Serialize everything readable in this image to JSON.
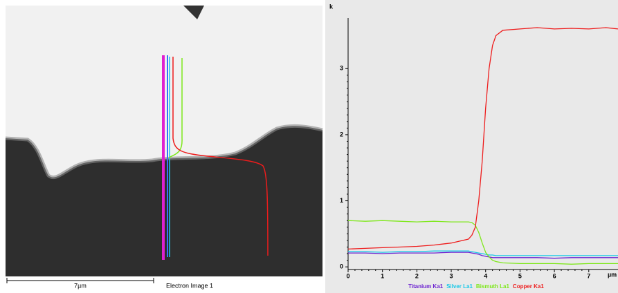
{
  "image": {
    "scale_bar": "7µm",
    "caption": "Electron Image 1"
  },
  "chart_data": {
    "type": "line",
    "y_label": "k",
    "x_label": "µm",
    "x": [
      0,
      0.5,
      1,
      1.5,
      2,
      2.5,
      3,
      3.5,
      3.6,
      3.7,
      3.8,
      3.9,
      4,
      4.1,
      4.2,
      4.3,
      4.5,
      5,
      5.5,
      6,
      6.5,
      7,
      7.5,
      7.85
    ],
    "series": [
      {
        "name": "Titanium Ka1",
        "color": "#6a1fd0",
        "values": [
          0.21,
          0.21,
          0.2,
          0.21,
          0.21,
          0.21,
          0.22,
          0.22,
          0.21,
          0.2,
          0.19,
          0.17,
          0.16,
          0.15,
          0.14,
          0.14,
          0.14,
          0.14,
          0.14,
          0.13,
          0.14,
          0.14,
          0.14,
          0.14
        ]
      },
      {
        "name": "Silver La1",
        "color": "#19c8e8",
        "values": [
          0.23,
          0.23,
          0.22,
          0.23,
          0.23,
          0.24,
          0.24,
          0.24,
          0.23,
          0.22,
          0.21,
          0.2,
          0.19,
          0.18,
          0.18,
          0.17,
          0.17,
          0.17,
          0.17,
          0.17,
          0.17,
          0.17,
          0.17,
          0.17
        ]
      },
      {
        "name": "Bismuth La1",
        "color": "#7ee81a",
        "values": [
          0.7,
          0.69,
          0.7,
          0.69,
          0.68,
          0.69,
          0.68,
          0.68,
          0.67,
          0.63,
          0.52,
          0.36,
          0.22,
          0.15,
          0.1,
          0.08,
          0.06,
          0.05,
          0.05,
          0.05,
          0.04,
          0.05,
          0.05,
          0.05
        ]
      },
      {
        "name": "Copper Ka1",
        "color": "#ee1c1c",
        "values": [
          0.27,
          0.28,
          0.29,
          0.3,
          0.31,
          0.33,
          0.36,
          0.42,
          0.48,
          0.6,
          1.0,
          1.6,
          2.4,
          3.0,
          3.35,
          3.5,
          3.58,
          3.6,
          3.62,
          3.6,
          3.61,
          3.6,
          3.62,
          3.6
        ]
      }
    ],
    "xlim": [
      0,
      7.85
    ],
    "ylim": [
      -0.04,
      3.85
    ],
    "xticks": [
      0,
      1,
      2,
      3,
      4,
      5,
      6,
      7
    ],
    "yticks": [
      0,
      1,
      2,
      3
    ]
  }
}
